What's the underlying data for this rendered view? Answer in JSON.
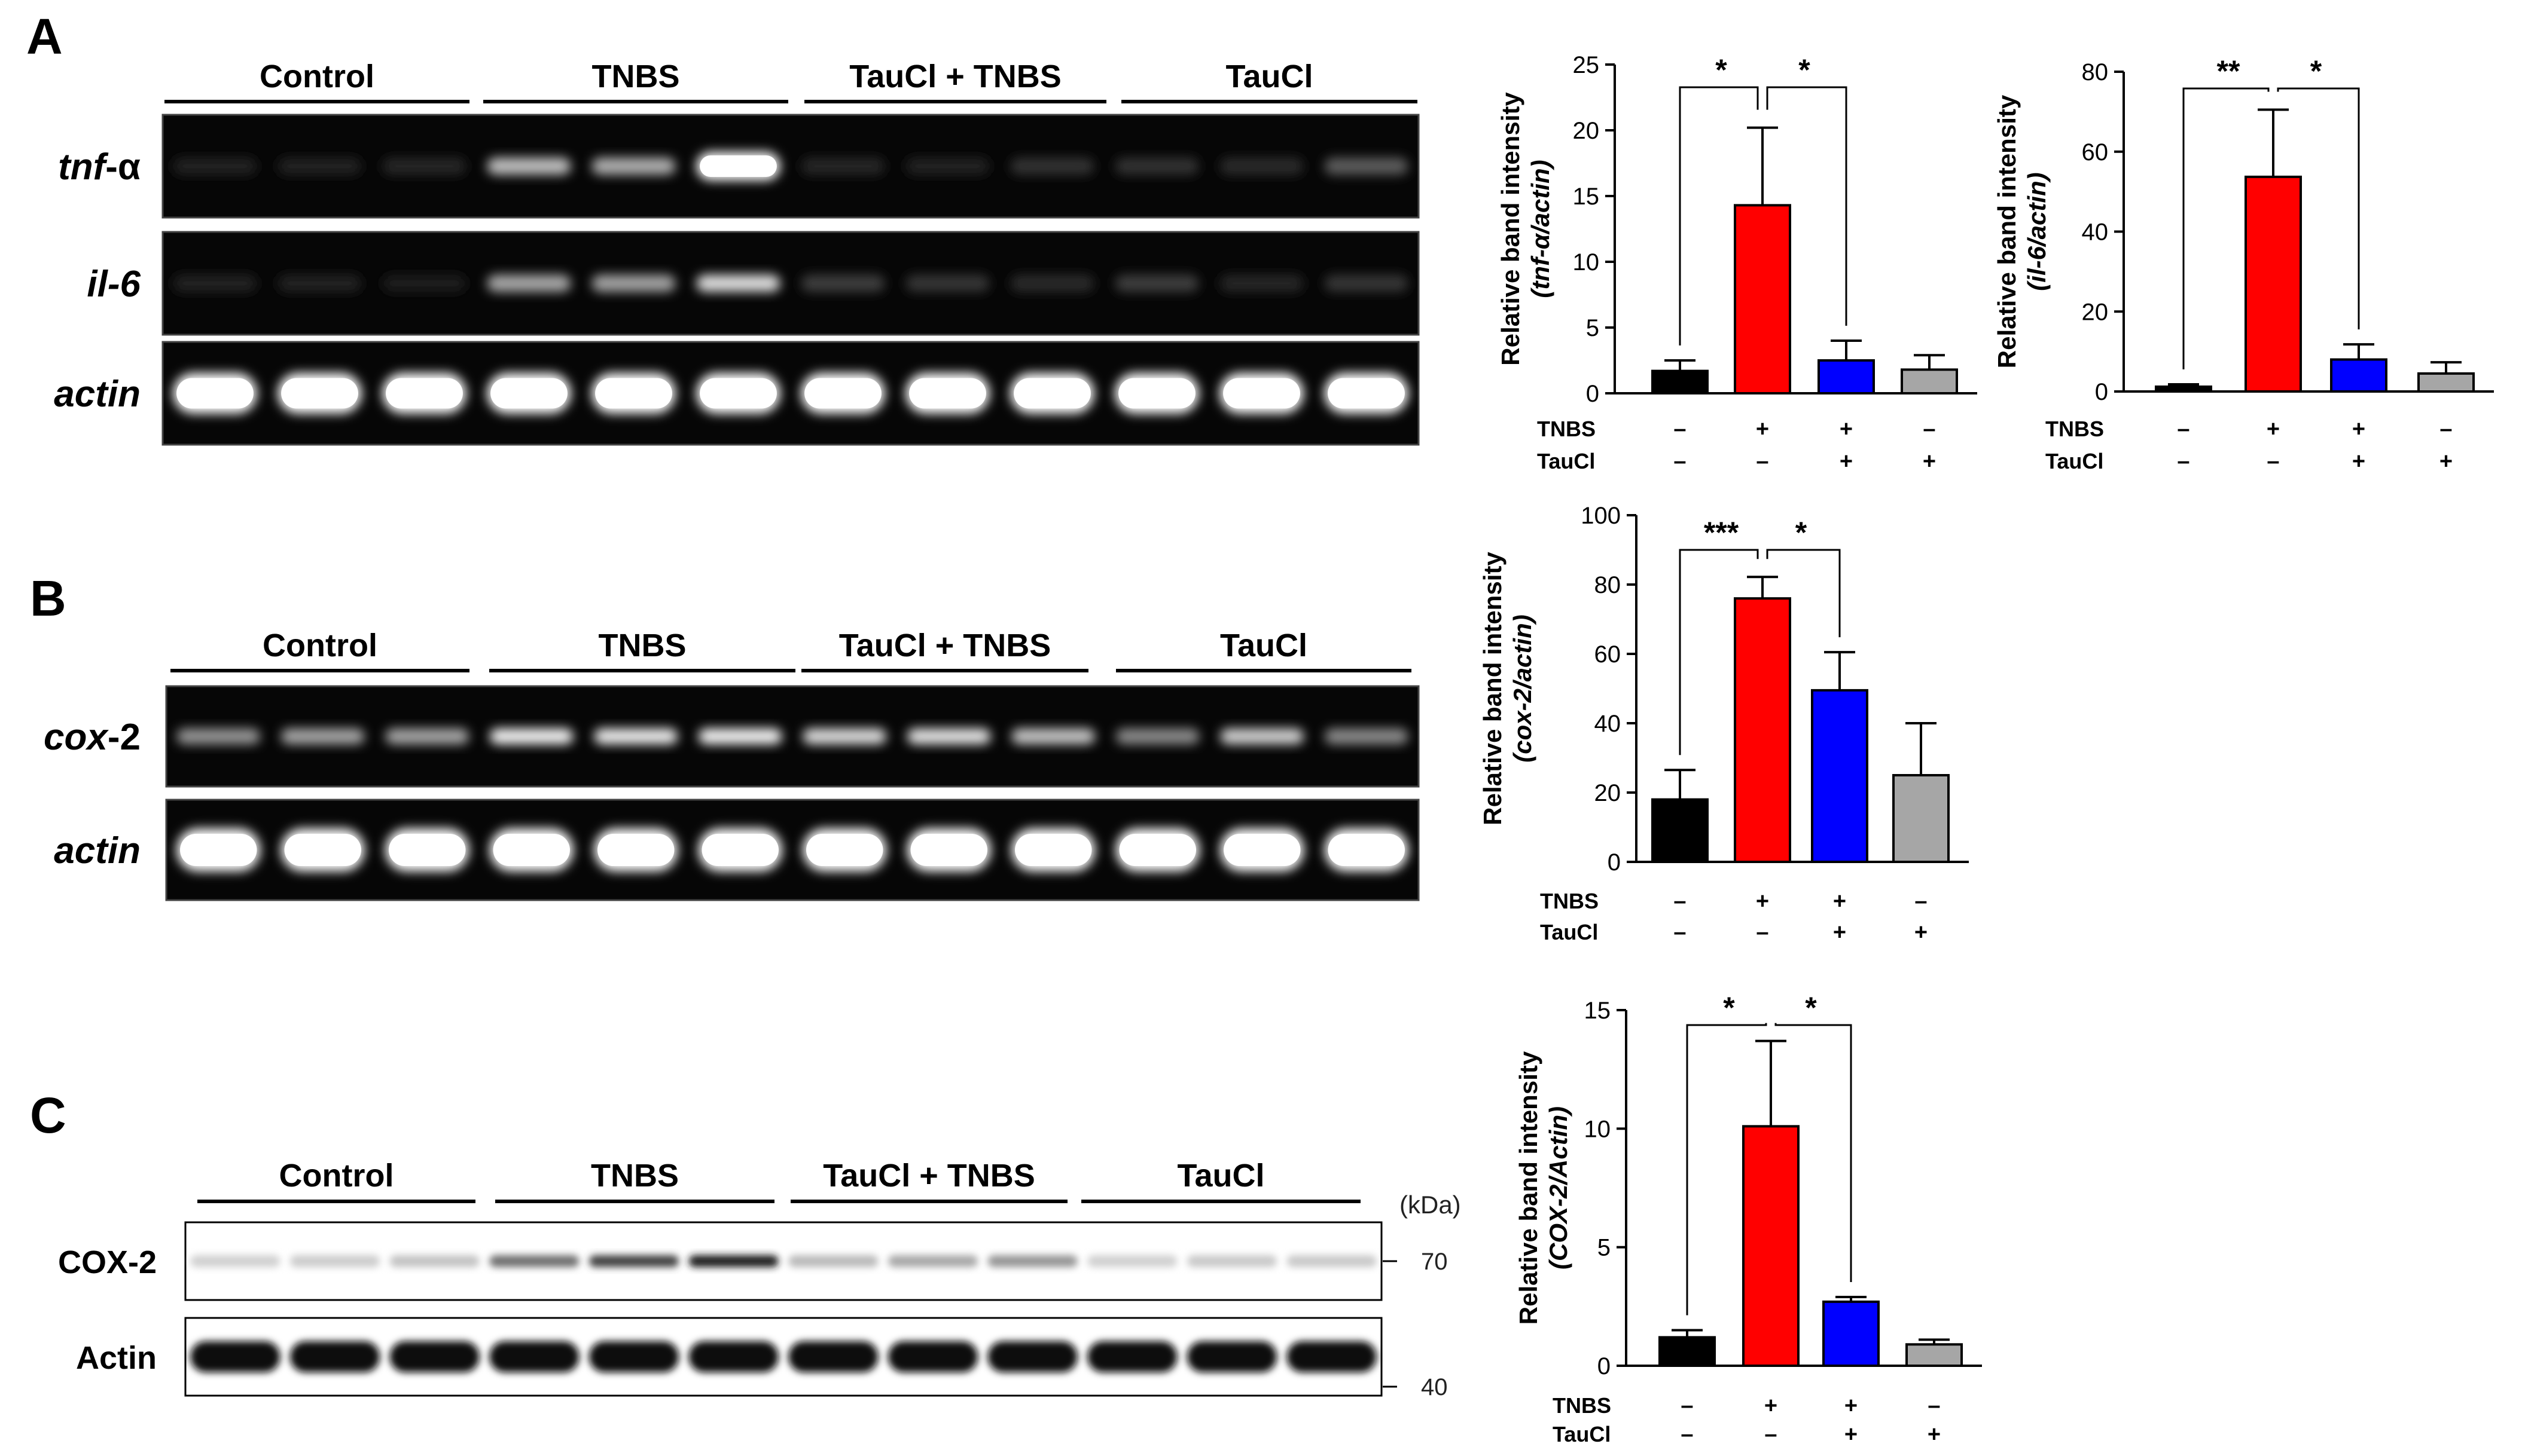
{
  "panelA": {
    "letter": "A",
    "groups": [
      "Control",
      "TNBS",
      "TauCl + TNBS",
      "TauCl"
    ],
    "rows": [
      {
        "label_italic": "tnf",
        "label_rest": "-α",
        "intensity": [
          0.05,
          0.06,
          0.08,
          0.72,
          0.65,
          1.0,
          0.08,
          0.07,
          0.12,
          0.12,
          0.1,
          0.3
        ]
      },
      {
        "label_italic": "il-6",
        "label_rest": "",
        "intensity": [
          0.05,
          0.06,
          0.04,
          0.62,
          0.6,
          0.85,
          0.18,
          0.14,
          0.1,
          0.18,
          0.08,
          0.14
        ]
      },
      {
        "label_italic": "actin",
        "label_rest": "",
        "intensity": [
          1,
          1,
          1,
          1,
          1,
          1,
          1,
          1,
          1,
          1,
          1,
          1
        ]
      }
    ]
  },
  "panelB": {
    "letter": "B",
    "groups": [
      "Control",
      "TNBS",
      "TauCl + TNBS",
      "TauCl"
    ],
    "rows": [
      {
        "label_italic": "cox",
        "label_rest": "-2",
        "intensity": [
          0.55,
          0.62,
          0.62,
          0.95,
          0.92,
          0.95,
          0.85,
          0.88,
          0.75,
          0.5,
          0.8,
          0.5
        ]
      },
      {
        "label_italic": "actin",
        "label_rest": "",
        "intensity": [
          1,
          1,
          1,
          1,
          1,
          1,
          1,
          1,
          1,
          1,
          1,
          1
        ]
      }
    ]
  },
  "panelC": {
    "letter": "C",
    "groups": [
      "Control",
      "TNBS",
      "TauCl + TNBS",
      "TauCl"
    ],
    "unit": "(kDa)",
    "rows": [
      {
        "label": "COX-2",
        "marker": "70",
        "intensity": [
          0.12,
          0.14,
          0.18,
          0.55,
          0.75,
          0.92,
          0.22,
          0.3,
          0.38,
          0.12,
          0.15,
          0.15
        ]
      },
      {
        "label": "Actin",
        "marker": "40",
        "intensity": [
          1,
          1,
          1,
          1,
          1,
          1,
          1,
          1,
          1,
          1,
          1,
          1
        ]
      }
    ]
  },
  "treatments": {
    "row1_label": "TNBS",
    "row2_label": "TauCl",
    "row1": [
      "–",
      "+",
      "+",
      "–"
    ],
    "row2": [
      "–",
      "–",
      "+",
      "+"
    ]
  },
  "colors": {
    "control": "#000000",
    "tnbs": "#ff0000",
    "tauclTnbs": "#0000ff",
    "taucl": "#a6a6a6"
  },
  "chart_data": [
    {
      "type": "bar",
      "ylabel_main": "Relative band intensity",
      "ylabel_sub": "(tnf-α/actin)",
      "ylim": [
        0,
        25
      ],
      "yticks": [
        0,
        5,
        10,
        15,
        20,
        25
      ],
      "values": [
        1.7,
        14.3,
        2.5,
        1.8
      ],
      "errors": [
        0.8,
        5.9,
        1.5,
        1.1
      ],
      "significance": [
        "*",
        "*"
      ]
    },
    {
      "type": "bar",
      "ylabel_main": "Relative band intensity",
      "ylabel_sub": "(il-6/actin)",
      "ylim": [
        0,
        80
      ],
      "yticks": [
        0,
        20,
        40,
        60,
        80
      ],
      "values": [
        1.2,
        53.7,
        8.0,
        4.5
      ],
      "errors": [
        0.6,
        16.8,
        3.8,
        2.8
      ],
      "significance": [
        "**",
        "*"
      ]
    },
    {
      "type": "bar",
      "ylabel_main": "Relative band intensity",
      "ylabel_sub": "(cox-2/actin)",
      "ylim": [
        0,
        100
      ],
      "yticks": [
        0,
        20,
        40,
        60,
        80,
        100
      ],
      "values": [
        18,
        76,
        49.5,
        25
      ],
      "errors": [
        8.5,
        6.2,
        11,
        15
      ],
      "significance": [
        "***",
        "*"
      ]
    },
    {
      "type": "bar",
      "ylabel_main": "Relative band intensity",
      "ylabel_sub": "(COX-2/Actin)",
      "ylim": [
        0,
        15
      ],
      "yticks": [
        0,
        5,
        10,
        15
      ],
      "values": [
        1.2,
        10.1,
        2.7,
        0.9
      ],
      "errors": [
        0.3,
        3.6,
        0.2,
        0.2
      ],
      "significance": [
        "*",
        "*"
      ]
    }
  ]
}
